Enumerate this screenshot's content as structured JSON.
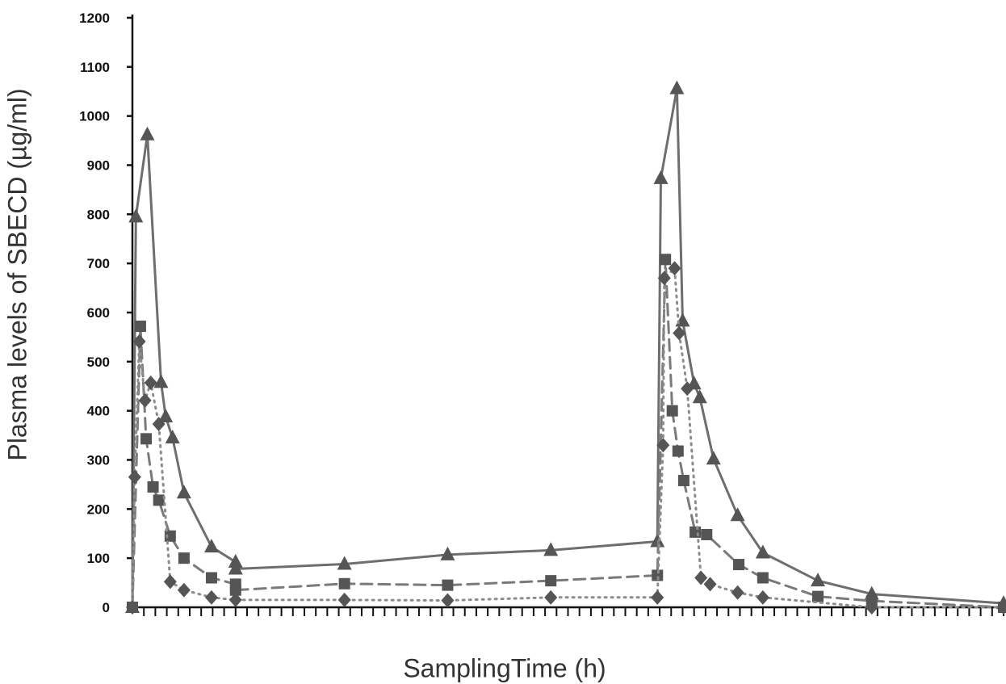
{
  "chart_data": {
    "type": "line",
    "title": "",
    "xlabel": "SamplingTime (h)",
    "ylabel": "Plasma levels of SBECD (µg/ml)",
    "ylim": [
      0,
      1200
    ],
    "yticks": [
      0,
      100,
      200,
      300,
      400,
      500,
      600,
      700,
      800,
      900,
      1000,
      1100,
      1200
    ],
    "x_tick_labels": [],
    "x_tick_count": 76,
    "grid": false,
    "legend": "none",
    "series": [
      {
        "marker": "triangle",
        "line_style": "solid",
        "color": "#6e6e6e",
        "points": [
          [
            0,
            0
          ],
          [
            0.3,
            795
          ],
          [
            1.3,
            962
          ],
          [
            2.5,
            458
          ],
          [
            2.9,
            388
          ],
          [
            3.5,
            345
          ],
          [
            4.5,
            233
          ],
          [
            6.9,
            123
          ],
          [
            9,
            92
          ],
          [
            9,
            78
          ],
          [
            18.5,
            88
          ],
          [
            27.5,
            107
          ],
          [
            36.5,
            116
          ],
          [
            45.8,
            134
          ],
          [
            46.1,
            873
          ],
          [
            47.5,
            1056
          ],
          [
            48,
            583
          ],
          [
            49,
            455
          ],
          [
            49.5,
            427
          ],
          [
            50.7,
            302
          ],
          [
            52.8,
            187
          ],
          [
            55,
            111
          ],
          [
            59.8,
            54
          ],
          [
            64.5,
            27
          ],
          [
            76,
            8
          ]
        ]
      },
      {
        "marker": "square",
        "line_style": "dashed",
        "color": "#7a7a7a",
        "points": [
          [
            0,
            0
          ],
          [
            0.7,
            572
          ],
          [
            1.2,
            343
          ],
          [
            1.8,
            245
          ],
          [
            2.3,
            218
          ],
          [
            3.3,
            145
          ],
          [
            4.5,
            100
          ],
          [
            6.9,
            60
          ],
          [
            9,
            47
          ],
          [
            9,
            35
          ],
          [
            18.5,
            48
          ],
          [
            27.5,
            45
          ],
          [
            36.5,
            54
          ],
          [
            45.8,
            65
          ],
          [
            46.5,
            708
          ],
          [
            47.1,
            400
          ],
          [
            47.6,
            318
          ],
          [
            48.1,
            258
          ],
          [
            49.1,
            153
          ],
          [
            50.1,
            148
          ],
          [
            52.9,
            87
          ],
          [
            55,
            60
          ],
          [
            59.8,
            22
          ],
          [
            64.5,
            13
          ],
          [
            76,
            0
          ]
        ]
      },
      {
        "marker": "diamond",
        "line_style": "dotted",
        "color": "#8c8c8c",
        "points": [
          [
            0,
            0
          ],
          [
            0.2,
            265
          ],
          [
            0.6,
            541
          ],
          [
            1.1,
            421
          ],
          [
            1.6,
            457
          ],
          [
            2.3,
            373
          ],
          [
            3.3,
            52
          ],
          [
            4.5,
            35
          ],
          [
            6.9,
            20
          ],
          [
            9,
            15
          ],
          [
            18.5,
            15
          ],
          [
            27.5,
            14
          ],
          [
            36.5,
            20
          ],
          [
            45.8,
            20
          ],
          [
            46.3,
            330
          ],
          [
            46.4,
            670
          ],
          [
            47.3,
            690
          ],
          [
            47.7,
            558
          ],
          [
            48.4,
            445
          ],
          [
            49.6,
            60
          ],
          [
            50.4,
            47
          ],
          [
            52.8,
            30
          ],
          [
            55,
            20
          ],
          [
            64.5,
            0
          ],
          [
            76,
            0
          ]
        ]
      }
    ]
  }
}
